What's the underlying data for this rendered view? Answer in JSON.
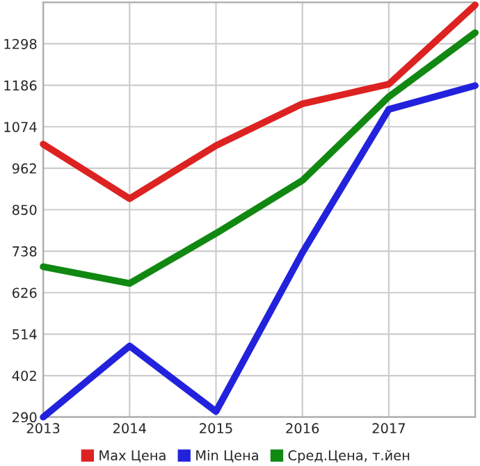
{
  "chart_data": {
    "type": "line",
    "x": [
      2013,
      2014,
      2015,
      2016,
      2017,
      2018
    ],
    "series": [
      {
        "name": "Max Цена",
        "color": "#dd2222",
        "values": [
          1027,
          880,
          1023,
          1136,
          1189,
          1403
        ]
      },
      {
        "name": "Min Цена",
        "color": "#2222dd",
        "values": [
          290,
          482,
          305,
          734,
          1121,
          1185
        ]
      },
      {
        "name": "Сред.Цена, т.йен",
        "color": "#118811",
        "values": [
          696,
          651,
          786,
          929,
          1155,
          1328
        ]
      }
    ],
    "xlim": [
      2013,
      2018
    ],
    "xticks": [
      2013,
      2014,
      2015,
      2016,
      2017
    ],
    "ylim": [
      290,
      1410
    ],
    "yticks": [
      290,
      402,
      514,
      626,
      738,
      850,
      962,
      1074,
      1186,
      1298
    ],
    "grid": true,
    "legend": "bottom",
    "marker": "none",
    "line_style": "solid"
  }
}
